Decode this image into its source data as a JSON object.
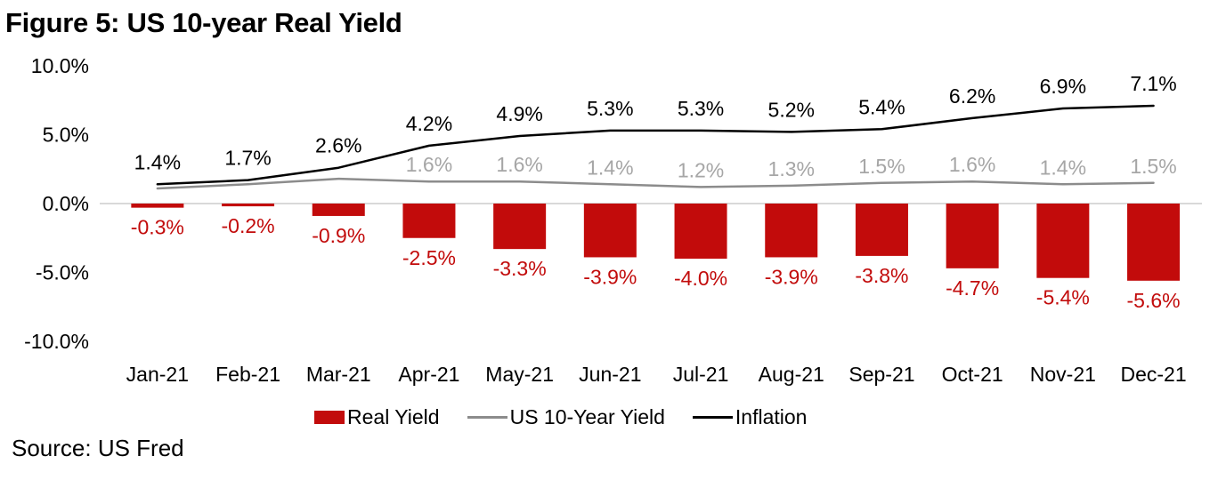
{
  "figure": {
    "title": "Figure 5: US 10-year Real Yield",
    "source": "Source: US Fred"
  },
  "legend": {
    "items": [
      {
        "label": "Real Yield",
        "swatch": "bar",
        "color": "#c20b0b"
      },
      {
        "label": "US 10-Year Yield",
        "swatch": "line",
        "color": "#8c8c8c"
      },
      {
        "label": "Inflation",
        "swatch": "line",
        "color": "#000000"
      }
    ]
  },
  "chart_data": {
    "type": "bar",
    "title": "Figure 5: US 10-year Real Yield",
    "categories": [
      "Jan-21",
      "Feb-21",
      "Mar-21",
      "Apr-21",
      "May-21",
      "Jun-21",
      "Jul-21",
      "Aug-21",
      "Sep-21",
      "Oct-21",
      "Nov-21",
      "Dec-21"
    ],
    "series": [
      {
        "name": "Real Yield",
        "type": "bar",
        "color": "#c20b0b",
        "label_color": "#c20b0b",
        "values": [
          -0.3,
          -0.2,
          -0.9,
          -2.5,
          -3.3,
          -3.9,
          -4.0,
          -3.9,
          -3.8,
          -4.7,
          -5.4,
          -5.6
        ],
        "labels": [
          "-0.3%",
          "-0.2%",
          "-0.9%",
          "-2.5%",
          "-3.3%",
          "-3.9%",
          "-4.0%",
          "-3.9%",
          "-3.8%",
          "-4.7%",
          "-5.4%",
          "-5.6%"
        ]
      },
      {
        "name": "US 10-Year Yield",
        "type": "line",
        "color": "#8c8c8c",
        "label_color": "#a6a6a6",
        "values": [
          1.1,
          1.4,
          1.8,
          1.6,
          1.6,
          1.4,
          1.2,
          1.3,
          1.5,
          1.6,
          1.4,
          1.5
        ],
        "labels": [
          "",
          "",
          "",
          "1.6%",
          "1.6%",
          "1.4%",
          "1.2%",
          "1.3%",
          "1.5%",
          "1.6%",
          "1.4%",
          "1.5%"
        ]
      },
      {
        "name": "Inflation",
        "type": "line",
        "color": "#000000",
        "label_color": "#000000",
        "values": [
          1.4,
          1.7,
          2.6,
          4.2,
          4.9,
          5.3,
          5.3,
          5.2,
          5.4,
          6.2,
          6.9,
          7.1
        ],
        "labels": [
          "1.4%",
          "1.7%",
          "2.6%",
          "4.2%",
          "4.9%",
          "5.3%",
          "5.3%",
          "5.2%",
          "5.4%",
          "6.2%",
          "6.9%",
          "7.1%"
        ]
      }
    ],
    "y_axis": {
      "tick_labels": [
        "10.0%",
        "5.0%",
        "0.0%",
        "-5.0%",
        "-10.0%"
      ],
      "tick_values": [
        10,
        5,
        0,
        -5,
        -10
      ],
      "ylim": [
        -10,
        10
      ]
    },
    "x_axis": {
      "label": ""
    },
    "grid": "zero-line-only",
    "gridline_color": "#d9d9d9",
    "legend_position": "bottom"
  }
}
